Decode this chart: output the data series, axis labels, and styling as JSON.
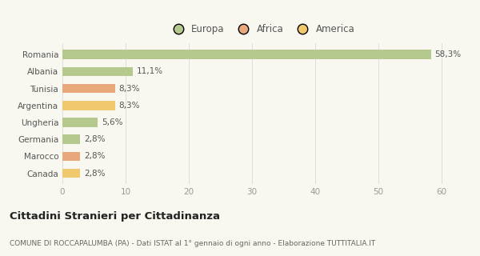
{
  "categories": [
    "Romania",
    "Albania",
    "Tunisia",
    "Argentina",
    "Ungheria",
    "Germania",
    "Marocco",
    "Canada"
  ],
  "values": [
    58.3,
    11.1,
    8.3,
    8.3,
    5.6,
    2.8,
    2.8,
    2.8
  ],
  "labels": [
    "58,3%",
    "11,1%",
    "8,3%",
    "8,3%",
    "5,6%",
    "2,8%",
    "2,8%",
    "2,8%"
  ],
  "colors": [
    "#b5c98e",
    "#b5c98e",
    "#e8a87c",
    "#f0c96e",
    "#b5c98e",
    "#b5c98e",
    "#e8a87c",
    "#f0c96e"
  ],
  "legend": [
    {
      "label": "Europa",
      "color": "#b5c98e"
    },
    {
      "label": "Africa",
      "color": "#e8a87c"
    },
    {
      "label": "America",
      "color": "#f0c96e"
    }
  ],
  "xlim": [
    0,
    63
  ],
  "xticks": [
    0,
    10,
    20,
    30,
    40,
    50,
    60
  ],
  "title": "Cittadini Stranieri per Cittadinanza",
  "subtitle": "COMUNE DI ROCCAPALUMBA (PA) - Dati ISTAT al 1° gennaio di ogni anno - Elaborazione TUTTITALIA.IT",
  "bg_color": "#f8f8f0",
  "bar_height": 0.55,
  "label_fontsize": 7.5,
  "tick_label_fontsize": 7.5,
  "legend_fontsize": 8.5,
  "title_fontsize": 9.5,
  "subtitle_fontsize": 6.5
}
